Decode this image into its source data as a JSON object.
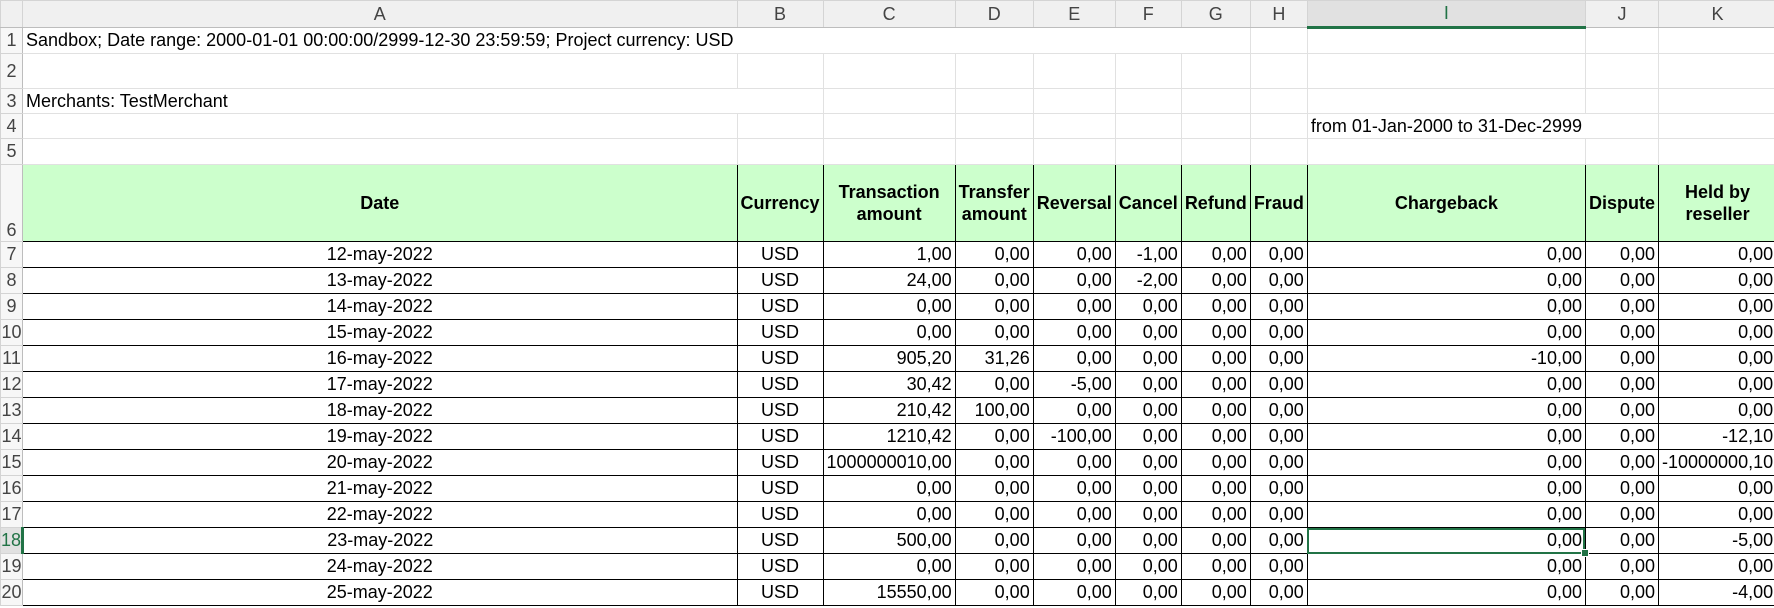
{
  "columns": [
    "A",
    "B",
    "C",
    "D",
    "E",
    "F",
    "G",
    "H",
    "I",
    "J",
    "K"
  ],
  "selected": {
    "column": "I",
    "row": 18,
    "cell": "I18"
  },
  "accent_color": "#217346",
  "header_fill": "#ccffcc",
  "info": {
    "line1": "Sandbox; Date range: 2000-01-01 00:00:00/2999-12-30 23:59:59; Project currency: USD",
    "merchants": "Merchants: TestMerchant",
    "period": "from 01-Jan-2000 to 31-Dec-2999"
  },
  "table": {
    "headers": [
      "Date",
      "Currency",
      "Transaction amount",
      "Transfer amount",
      "Reversal",
      "Cancel",
      "Refund",
      "Fraud",
      "Chargeback",
      "Dispute",
      "Held by reseller"
    ],
    "rows": [
      [
        "12-may-2022",
        "USD",
        "1,00",
        "0,00",
        "0,00",
        "-1,00",
        "0,00",
        "0,00",
        "0,00",
        "0,00",
        "0,00"
      ],
      [
        "13-may-2022",
        "USD",
        "24,00",
        "0,00",
        "0,00",
        "-2,00",
        "0,00",
        "0,00",
        "0,00",
        "0,00",
        "0,00"
      ],
      [
        "14-may-2022",
        "USD",
        "0,00",
        "0,00",
        "0,00",
        "0,00",
        "0,00",
        "0,00",
        "0,00",
        "0,00",
        "0,00"
      ],
      [
        "15-may-2022",
        "USD",
        "0,00",
        "0,00",
        "0,00",
        "0,00",
        "0,00",
        "0,00",
        "0,00",
        "0,00",
        "0,00"
      ],
      [
        "16-may-2022",
        "USD",
        "905,20",
        "31,26",
        "0,00",
        "0,00",
        "0,00",
        "0,00",
        "-10,00",
        "0,00",
        "0,00"
      ],
      [
        "17-may-2022",
        "USD",
        "30,42",
        "0,00",
        "-5,00",
        "0,00",
        "0,00",
        "0,00",
        "0,00",
        "0,00",
        "0,00"
      ],
      [
        "18-may-2022",
        "USD",
        "210,42",
        "100,00",
        "0,00",
        "0,00",
        "0,00",
        "0,00",
        "0,00",
        "0,00",
        "0,00"
      ],
      [
        "19-may-2022",
        "USD",
        "1210,42",
        "0,00",
        "-100,00",
        "0,00",
        "0,00",
        "0,00",
        "0,00",
        "0,00",
        "-12,10"
      ],
      [
        "20-may-2022",
        "USD",
        "1000000010,00",
        "0,00",
        "0,00",
        "0,00",
        "0,00",
        "0,00",
        "0,00",
        "0,00",
        "-10000000,10"
      ],
      [
        "21-may-2022",
        "USD",
        "0,00",
        "0,00",
        "0,00",
        "0,00",
        "0,00",
        "0,00",
        "0,00",
        "0,00",
        "0,00"
      ],
      [
        "22-may-2022",
        "USD",
        "0,00",
        "0,00",
        "0,00",
        "0,00",
        "0,00",
        "0,00",
        "0,00",
        "0,00",
        "0,00"
      ],
      [
        "23-may-2022",
        "USD",
        "500,00",
        "0,00",
        "0,00",
        "0,00",
        "0,00",
        "0,00",
        "0,00",
        "0,00",
        "-5,00"
      ],
      [
        "24-may-2022",
        "USD",
        "0,00",
        "0,00",
        "0,00",
        "0,00",
        "0,00",
        "0,00",
        "0,00",
        "0,00",
        "0,00"
      ],
      [
        "25-may-2022",
        "USD",
        "15550,00",
        "0,00",
        "0,00",
        "0,00",
        "0,00",
        "0,00",
        "0,00",
        "0,00",
        "-4,00"
      ]
    ]
  }
}
